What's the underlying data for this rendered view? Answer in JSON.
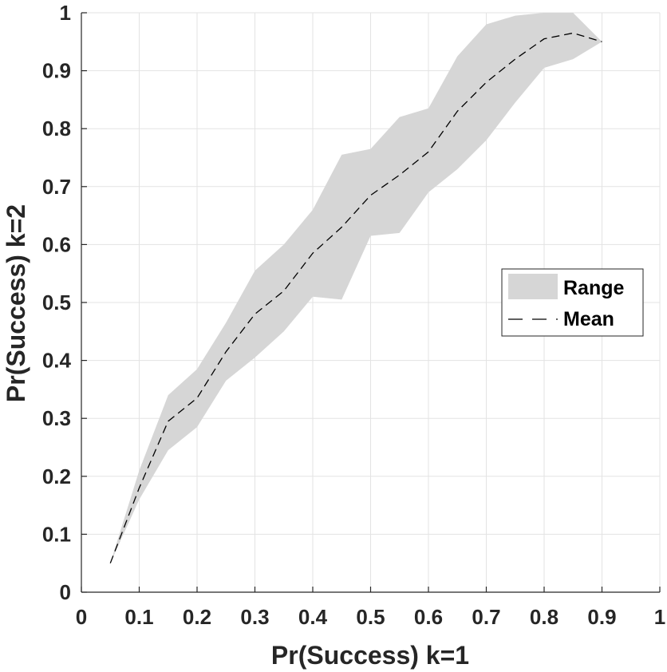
{
  "chart_data": {
    "type": "area",
    "xlabel": "Pr(Success) k=1",
    "ylabel": "Pr(Success) k=2",
    "xlim": [
      0,
      1
    ],
    "ylim": [
      0,
      1
    ],
    "x_ticks": [
      "0",
      "0.1",
      "0.2",
      "0.3",
      "0.4",
      "0.5",
      "0.6",
      "0.7",
      "0.8",
      "0.9",
      "1"
    ],
    "y_ticks": [
      "0",
      "0.1",
      "0.2",
      "0.3",
      "0.4",
      "0.5",
      "0.6",
      "0.7",
      "0.8",
      "0.9",
      "1"
    ],
    "grid": true,
    "legend_position": "right",
    "x": [
      0.05,
      0.1,
      0.15,
      0.2,
      0.25,
      0.3,
      0.35,
      0.4,
      0.45,
      0.5,
      0.55,
      0.6,
      0.65,
      0.7,
      0.75,
      0.8,
      0.85,
      0.9
    ],
    "series": [
      {
        "name": "Range",
        "kind": "band",
        "color": "#d6d6d6",
        "lower": [
          0.05,
          0.16,
          0.245,
          0.285,
          0.365,
          0.405,
          0.45,
          0.51,
          0.505,
          0.615,
          0.62,
          0.69,
          0.73,
          0.78,
          0.845,
          0.905,
          0.92,
          0.95
        ],
        "upper": [
          0.05,
          0.21,
          0.34,
          0.385,
          0.465,
          0.555,
          0.6,
          0.66,
          0.755,
          0.765,
          0.82,
          0.835,
          0.925,
          0.98,
          0.995,
          1.0,
          1.0,
          0.95
        ]
      },
      {
        "name": "Mean",
        "kind": "line",
        "style": "dashed",
        "color": "#000000",
        "values": [
          0.05,
          0.18,
          0.295,
          0.335,
          0.415,
          0.48,
          0.52,
          0.585,
          0.63,
          0.685,
          0.72,
          0.76,
          0.83,
          0.88,
          0.92,
          0.955,
          0.965,
          0.95
        ]
      }
    ]
  }
}
